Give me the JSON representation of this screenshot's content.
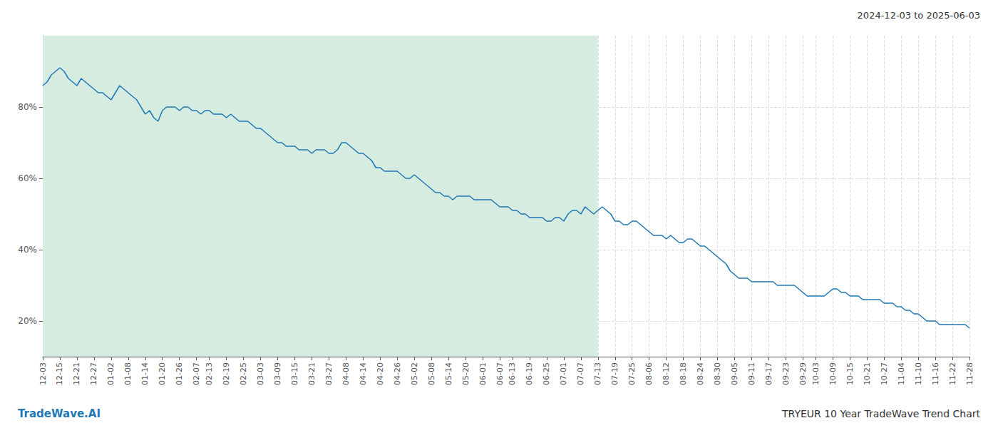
{
  "chart_data": {
    "type": "line",
    "title": "TRYEUR 10 Year TradeWave Trend Chart",
    "subtitle": "2024-12-03 to 2025-06-03",
    "annotations": [
      {
        "text": "TradeWave.AI",
        "color": "#1f77b4"
      }
    ],
    "color": "#1f77b4",
    "grid": true,
    "ylim": [
      10,
      100
    ],
    "yticks": [
      {
        "value": 20,
        "label": "20%"
      },
      {
        "value": 40,
        "label": "40%"
      },
      {
        "value": 60,
        "label": "60%"
      },
      {
        "value": 80,
        "label": "80%"
      }
    ],
    "shaded_region": {
      "x": [
        0,
        130
      ],
      "color": "#d6ece1"
    },
    "categories": [
      "12-03",
      null,
      null,
      null,
      "12-15",
      null,
      null,
      null,
      "12-21",
      null,
      null,
      null,
      "12-27",
      null,
      null,
      null,
      "01-02",
      null,
      null,
      null,
      "01-08",
      null,
      null,
      null,
      "01-14",
      null,
      null,
      null,
      "01-20",
      null,
      null,
      null,
      "01-26",
      null,
      null,
      null,
      "02-07",
      null,
      null,
      "02-13",
      null,
      null,
      null,
      "02-19",
      null,
      null,
      null,
      "02-25",
      null,
      null,
      null,
      "03-03",
      null,
      null,
      null,
      "03-09",
      null,
      null,
      null,
      "03-15",
      null,
      null,
      null,
      "03-21",
      null,
      null,
      null,
      "03-27",
      null,
      null,
      null,
      "04-08",
      null,
      null,
      null,
      "04-14",
      null,
      null,
      null,
      "04-20",
      null,
      null,
      null,
      "04-26",
      null,
      null,
      null,
      "05-02",
      null,
      null,
      null,
      "05-08",
      null,
      null,
      null,
      "05-14",
      null,
      null,
      null,
      "05-20",
      null,
      null,
      null,
      "06-01",
      null,
      null,
      null,
      "06-07",
      null,
      null,
      "06-13",
      null,
      null,
      null,
      "06-19",
      null,
      null,
      null,
      "06-25",
      null,
      null,
      null,
      "07-01",
      null,
      null,
      null,
      "07-07",
      null,
      null,
      null,
      "07-13",
      null,
      null,
      null,
      "07-19",
      null,
      null,
      null,
      "07-25",
      null,
      null,
      null,
      "08-06",
      null,
      null,
      null,
      "08-12",
      null,
      null,
      null,
      "08-18",
      null,
      null,
      null,
      "08-24",
      null,
      null,
      null,
      "08-30",
      null,
      null,
      null,
      "09-05",
      null,
      null,
      null,
      "09-11",
      null,
      null,
      null,
      "09-17",
      null,
      null,
      null,
      "09-23",
      null,
      null,
      null,
      "09-29",
      null,
      null,
      "10-03",
      null,
      null,
      null,
      "10-09",
      null,
      null,
      null,
      "10-15",
      null,
      null,
      null,
      "10-21",
      null,
      null,
      null,
      "10-27",
      null,
      null,
      null,
      "11-04",
      null,
      null,
      null,
      "11-10",
      null,
      null,
      null,
      "11-16",
      null,
      null,
      null,
      "11-22",
      null,
      null,
      null,
      "11-28"
    ],
    "values": [
      86,
      87,
      89,
      90,
      91,
      90,
      88,
      87,
      86,
      88,
      87,
      86,
      85,
      84,
      84,
      83,
      82,
      84,
      86,
      85,
      84,
      83,
      82,
      80,
      78,
      79,
      77,
      76,
      79,
      80,
      80,
      80,
      79,
      80,
      80,
      79,
      79,
      78,
      79,
      79,
      78,
      78,
      78,
      77,
      78,
      77,
      76,
      76,
      76,
      75,
      74,
      74,
      73,
      72,
      71,
      70,
      70,
      69,
      69,
      69,
      68,
      68,
      68,
      67,
      68,
      68,
      68,
      67,
      67,
      68,
      70,
      70,
      69,
      68,
      67,
      67,
      66,
      65,
      63,
      63,
      62,
      62,
      62,
      62,
      61,
      60,
      60,
      61,
      60,
      59,
      58,
      57,
      56,
      56,
      55,
      55,
      54,
      55,
      55,
      55,
      55,
      54,
      54,
      54,
      54,
      54,
      53,
      52,
      52,
      52,
      51,
      51,
      50,
      50,
      49,
      49,
      49,
      49,
      48,
      48,
      49,
      49,
      48,
      50,
      51,
      51,
      50,
      52,
      51,
      50,
      51,
      52,
      51,
      50,
      48,
      48,
      47,
      47,
      48,
      48,
      47,
      46,
      45,
      44,
      44,
      44,
      43,
      44,
      43,
      42,
      42,
      43,
      43,
      42,
      41,
      41,
      40,
      39,
      38,
      37,
      36,
      34,
      33,
      32,
      32,
      32,
      31,
      31,
      31,
      31,
      31,
      31,
      30,
      30,
      30,
      30,
      30,
      29,
      28,
      27,
      27,
      27,
      27,
      27,
      28,
      29,
      29,
      28,
      28,
      27,
      27,
      27,
      26,
      26,
      26,
      26,
      26,
      25,
      25,
      25,
      24,
      24,
      23,
      23,
      22,
      22,
      21,
      20,
      20,
      20,
      19,
      19,
      19,
      19,
      19,
      19,
      19,
      18
    ]
  }
}
